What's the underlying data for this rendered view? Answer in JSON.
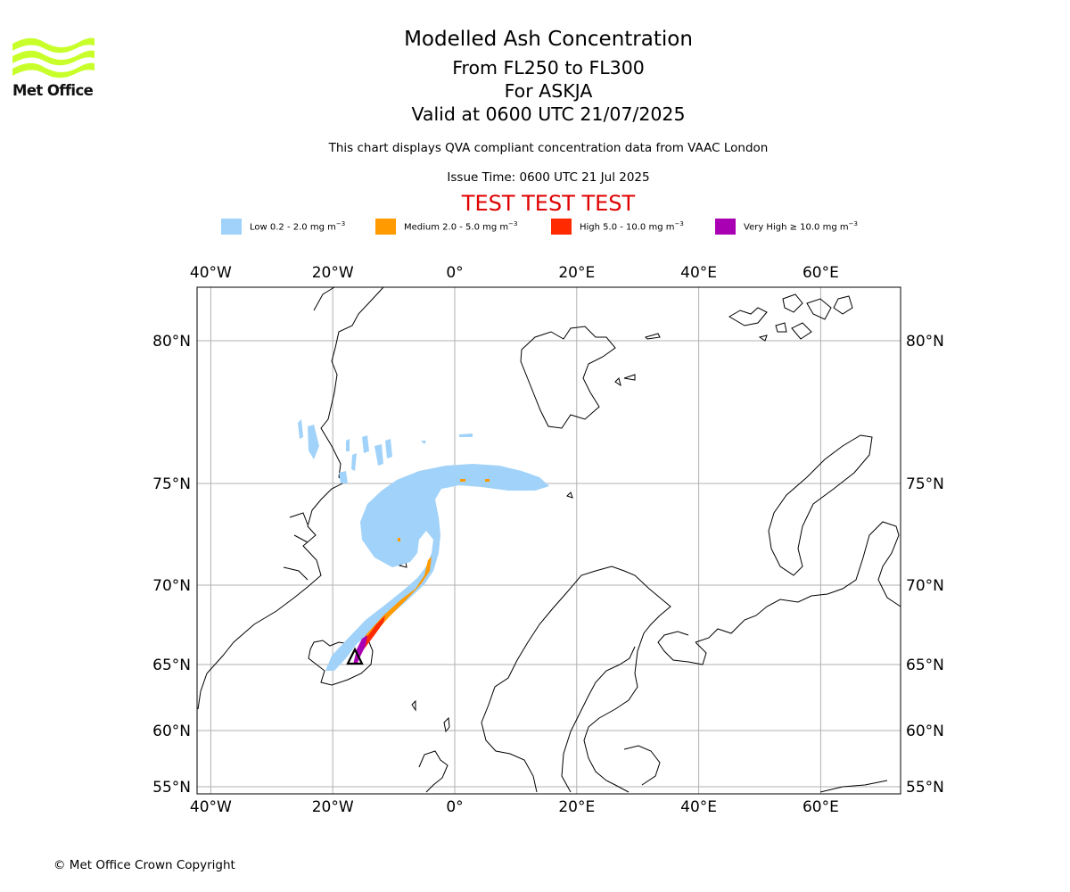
{
  "logo": {
    "text": "Met Office",
    "color": "#c8ff2a"
  },
  "title": {
    "main": "Modelled Ash Concentration",
    "level": "From FL250 to FL300",
    "volcano": "For ASKJA",
    "valid": "Valid at 0600 UTC 21/07/2025"
  },
  "notes": {
    "compliance": "This chart displays QVA compliant concentration data from VAAC London",
    "issue_time": "Issue Time: 0600 UTC 21 Jul 2025",
    "test_banner": "TEST TEST TEST"
  },
  "legend": [
    {
      "label": "Low 0.2 - 2.0 mg m",
      "unit_exp": "−3",
      "color": "#a0d2fa"
    },
    {
      "label": "Medium 2.0 - 5.0 mg m",
      "unit_exp": "−3",
      "color": "#ff9a00"
    },
    {
      "label": "High 5.0 - 10.0 mg m",
      "unit_exp": "−3",
      "color": "#ff2a00"
    },
    {
      "label": "Very High  ≥  10.0 mg m",
      "unit_exp": "−3",
      "color": "#aa00b4"
    }
  ],
  "map": {
    "lon_ticks": [
      {
        "lon": -40,
        "label": "40°W"
      },
      {
        "lon": -20,
        "label": "20°W"
      },
      {
        "lon": 0,
        "label": "0°"
      },
      {
        "lon": 20,
        "label": "20°E"
      },
      {
        "lon": 40,
        "label": "40°E"
      },
      {
        "lon": 60,
        "label": "60°E"
      }
    ],
    "lat_ticks": [
      {
        "lat": 80,
        "label": "80°N"
      },
      {
        "lat": 75,
        "label": "75°N"
      },
      {
        "lat": 70,
        "label": "70°N"
      },
      {
        "lat": 65,
        "label": "65°N"
      },
      {
        "lat": 60,
        "label": "60°N"
      },
      {
        "lat": 55,
        "label": "55°N"
      }
    ],
    "grid": true,
    "grid_color": "#b0b0b0",
    "source_marker": "volcano-triangle"
  },
  "footer": {
    "copyright": "© Met Office Crown Copyright"
  }
}
